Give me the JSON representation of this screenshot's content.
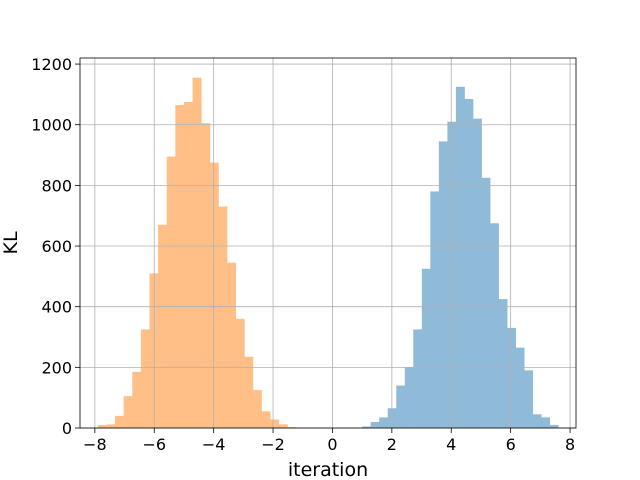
{
  "chart_data": {
    "type": "histogram",
    "xlabel": "iteration",
    "ylabel": "KL",
    "xlim": [
      -8.5,
      8.2
    ],
    "ylim": [
      0,
      1220
    ],
    "grid": true,
    "xticks": [
      -8,
      -6,
      -4,
      -2,
      0,
      2,
      4,
      6,
      8
    ],
    "xtick_labels": [
      "−8",
      "−6",
      "−4",
      "−2",
      "0",
      "2",
      "4",
      "6",
      "8"
    ],
    "yticks": [
      0,
      200,
      400,
      600,
      800,
      1000,
      1200
    ],
    "ytick_labels": [
      "0",
      "200",
      "400",
      "600",
      "800",
      "1000",
      "1200"
    ],
    "series": [
      {
        "color": "#ffbf86",
        "bin_start": -7.9,
        "bin_width": 0.29,
        "values": [
          10,
          12,
          40,
          105,
          185,
          325,
          510,
          670,
          895,
          1065,
          1075,
          1155,
          1005,
          875,
          730,
          545,
          360,
          235,
          125,
          55,
          28,
          12,
          3
        ]
      },
      {
        "color": "#8fbad8",
        "bin_start": 1.0,
        "bin_width": 0.287,
        "values": [
          5,
          20,
          35,
          65,
          140,
          200,
          325,
          525,
          780,
          945,
          1010,
          1125,
          1085,
          1020,
          825,
          675,
          425,
          330,
          265,
          190,
          45,
          35,
          10
        ]
      }
    ]
  }
}
